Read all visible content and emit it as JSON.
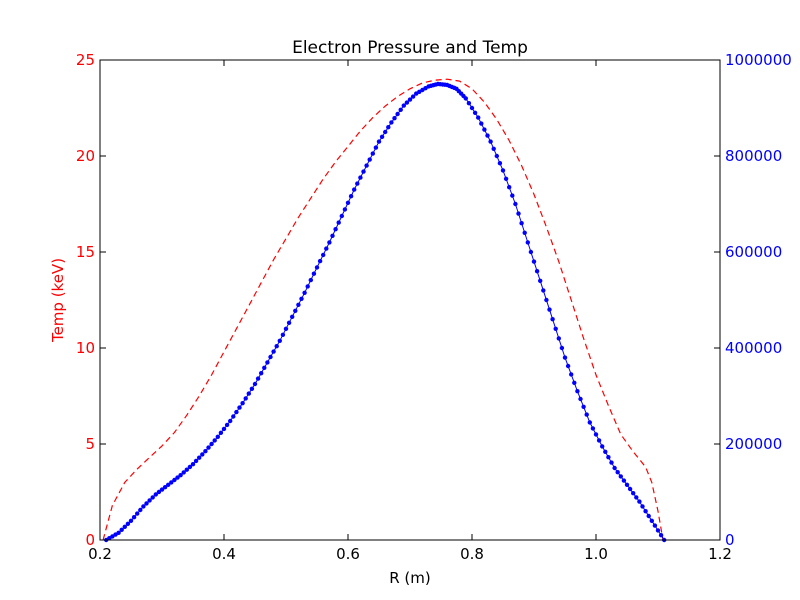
{
  "chart_data": {
    "type": "line",
    "title": "Electron Pressure and Temp",
    "xlabel": "R (m)",
    "ylabel": "Temp (keV)",
    "ylabel_right": "",
    "xlim": [
      0.2,
      1.2
    ],
    "ylim": [
      0,
      25
    ],
    "ylim_right": [
      0,
      1000000
    ],
    "x_ticks": [
      "0.2",
      "0.4",
      "0.6",
      "0.8",
      "1.0",
      "1.2"
    ],
    "y_ticks": [
      "0",
      "5",
      "10",
      "15",
      "20",
      "25"
    ],
    "y_ticks_right": [
      "0",
      "200000",
      "400000",
      "600000",
      "800000",
      "1000000"
    ],
    "grid": false,
    "legend": "none",
    "colors": {
      "temp": "#ff0000",
      "pressure": "#0000ff",
      "axes": "#000000"
    },
    "series": [
      {
        "axis": "left",
        "style": "dashed",
        "x": [
          0.205,
          0.22,
          0.24,
          0.26,
          0.28,
          0.3,
          0.32,
          0.34,
          0.36,
          0.38,
          0.4,
          0.42,
          0.44,
          0.46,
          0.48,
          0.5,
          0.52,
          0.54,
          0.56,
          0.58,
          0.6,
          0.62,
          0.64,
          0.66,
          0.68,
          0.7,
          0.72,
          0.74,
          0.76,
          0.78,
          0.8,
          0.82,
          0.84,
          0.86,
          0.88,
          0.9,
          0.92,
          0.94,
          0.96,
          0.98,
          1.0,
          1.02,
          1.04,
          1.06,
          1.08,
          1.09,
          1.1,
          1.108
        ],
        "y": [
          0.0,
          1.8,
          3.0,
          3.7,
          4.3,
          4.9,
          5.6,
          6.5,
          7.5,
          8.6,
          9.8,
          11.0,
          12.2,
          13.4,
          14.6,
          15.7,
          16.8,
          17.8,
          18.8,
          19.7,
          20.5,
          21.3,
          22.0,
          22.6,
          23.1,
          23.5,
          23.8,
          23.95,
          24.0,
          23.9,
          23.5,
          22.8,
          21.9,
          20.8,
          19.5,
          18.0,
          16.3,
          14.5,
          12.5,
          10.5,
          8.6,
          7.0,
          5.5,
          4.6,
          3.8,
          3.0,
          1.5,
          0.0
        ]
      },
      {
        "axis": "right",
        "style": "dots",
        "x": [
          0.21,
          0.23,
          0.25,
          0.27,
          0.29,
          0.31,
          0.33,
          0.35,
          0.37,
          0.39,
          0.41,
          0.43,
          0.45,
          0.47,
          0.49,
          0.51,
          0.53,
          0.55,
          0.57,
          0.59,
          0.61,
          0.63,
          0.65,
          0.67,
          0.69,
          0.71,
          0.73,
          0.745,
          0.76,
          0.775,
          0.79,
          0.81,
          0.83,
          0.85,
          0.87,
          0.89,
          0.91,
          0.93,
          0.95,
          0.97,
          0.99,
          1.01,
          1.03,
          1.05,
          1.07,
          1.09,
          1.11
        ],
        "y": [
          0,
          15000,
          40000,
          70000,
          95000,
          115000,
          135000,
          158000,
          185000,
          215000,
          248000,
          285000,
          325000,
          370000,
          415000,
          465000,
          515000,
          568000,
          620000,
          675000,
          730000,
          780000,
          830000,
          870000,
          905000,
          930000,
          945000,
          950000,
          948000,
          940000,
          920000,
          880000,
          830000,
          770000,
          700000,
          620000,
          540000,
          460000,
          380000,
          310000,
          245000,
          195000,
          150000,
          115000,
          80000,
          40000,
          0
        ]
      }
    ]
  }
}
